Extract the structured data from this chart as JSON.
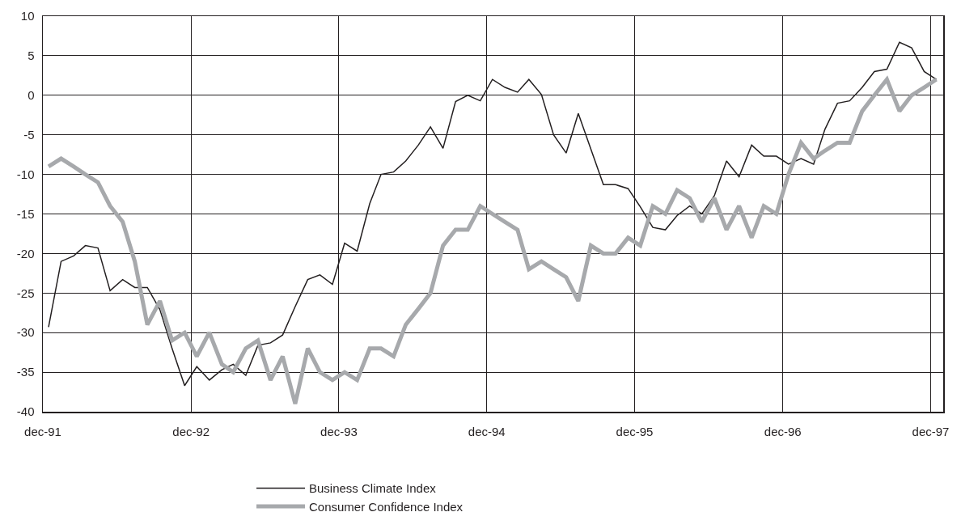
{
  "chart_data": {
    "type": "line",
    "x": [
      "1991-12-15",
      "1992-01-15",
      "1992-02-15",
      "1992-03-15",
      "1992-04-15",
      "1992-05-15",
      "1992-06-15",
      "1992-07-15",
      "1992-08-15",
      "1992-09-15",
      "1992-10-15",
      "1992-11-15",
      "1992-12-15",
      "1993-01-15",
      "1993-02-15",
      "1993-03-15",
      "1993-04-15",
      "1993-05-15",
      "1993-06-15",
      "1993-07-15",
      "1993-08-15",
      "1993-09-15",
      "1993-10-15",
      "1993-11-15",
      "1993-12-15",
      "1994-01-15",
      "1994-02-15",
      "1994-03-15",
      "1994-04-15",
      "1994-05-15",
      "1994-06-15",
      "1994-07-15",
      "1994-08-15",
      "1994-09-15",
      "1994-10-15",
      "1994-11-15",
      "1994-12-15",
      "1995-01-15",
      "1995-02-15",
      "1995-03-15",
      "1995-04-15",
      "1995-05-15",
      "1995-06-15",
      "1995-07-15",
      "1995-08-15",
      "1995-09-15",
      "1995-10-15",
      "1995-11-15",
      "1995-12-15",
      "1996-01-15",
      "1996-02-15",
      "1996-03-15",
      "1996-04-15",
      "1996-05-15",
      "1996-06-15",
      "1996-07-15",
      "1996-08-15",
      "1996-09-15",
      "1996-10-15",
      "1996-11-15",
      "1996-12-15",
      "1997-01-15",
      "1997-02-15",
      "1997-03-15",
      "1997-04-15",
      "1997-05-15",
      "1997-06-15",
      "1997-07-15",
      "1997-08-15",
      "1997-09-15",
      "1997-10-15",
      "1997-11-15",
      "1997-12-15"
    ],
    "series": [
      {
        "name": "Business Climate Index",
        "color": "#231f20",
        "values": [
          -29.3,
          -21.0,
          -20.3,
          -19.0,
          -19.3,
          -24.7,
          -23.3,
          -24.3,
          -24.3,
          -27.1,
          -32.0,
          -36.7,
          -34.3,
          -36.0,
          -34.7,
          -34.0,
          -35.4,
          -31.6,
          -31.3,
          -30.3,
          -26.7,
          -23.3,
          -22.7,
          -23.9,
          -18.7,
          -19.7,
          -13.7,
          -10.0,
          -9.7,
          -8.3,
          -6.3,
          -4.0,
          -6.7,
          -0.8,
          0.0,
          -0.7,
          2.0,
          1.0,
          0.4,
          2.0,
          0.1,
          -5.0,
          -7.3,
          -2.3,
          -6.8,
          -11.3,
          -11.3,
          -11.8,
          -14.1,
          -16.7,
          -17.0,
          -15.2,
          -14.0,
          -15.0,
          -12.7,
          -8.3,
          -10.3,
          -6.3,
          -7.7,
          -7.7,
          -8.7,
          -8.0,
          -8.7,
          -4.3,
          -1.0,
          -0.7,
          1.0,
          3.0,
          3.3,
          6.7,
          6.0,
          3.0,
          2.0
        ]
      },
      {
        "name": "Consumer Confidence Index",
        "color": "#a7a9ac",
        "values": [
          -9,
          -8,
          -9,
          -10,
          -11,
          -14,
          -16,
          -21,
          -29,
          -26,
          -31,
          -30,
          -33,
          -30,
          -34,
          -35,
          -32,
          -31,
          -36,
          -33,
          -39,
          -32,
          -35,
          -36,
          -35,
          -36,
          -32,
          -32,
          -33,
          -29,
          -27,
          -25,
          -19,
          -17,
          -17,
          -14,
          -15,
          -16,
          -17,
          -22,
          -21,
          -22,
          -23,
          -26,
          -19,
          -20,
          -20,
          -18,
          -19,
          -14,
          -15,
          -12,
          -13,
          -16,
          -13,
          -17,
          -14,
          -18,
          -14,
          -15,
          -10,
          -6,
          -8,
          -7,
          -6,
          -6,
          -2,
          0,
          2,
          -2,
          0,
          1,
          2
        ]
      }
    ],
    "xlim": [
      "1991-12-01",
      "1998-01-01"
    ],
    "xticks": [
      {
        "value": "1991-12-01",
        "label": "dec-91"
      },
      {
        "value": "1992-12-01",
        "label": "dec-92"
      },
      {
        "value": "1993-12-01",
        "label": "dec-93"
      },
      {
        "value": "1994-12-01",
        "label": "dec-94"
      },
      {
        "value": "1995-12-01",
        "label": "dec-95"
      },
      {
        "value": "1996-12-01",
        "label": "dec-96"
      },
      {
        "value": "1997-12-01",
        "label": "dec-97"
      }
    ],
    "ylim": [
      -40,
      10
    ],
    "yticks": [
      -40,
      -35,
      -30,
      -25,
      -20,
      -15,
      -10,
      -5,
      0,
      5,
      10
    ],
    "grid": true,
    "legend": "bottom",
    "marker": "none",
    "line_style": "solid"
  }
}
